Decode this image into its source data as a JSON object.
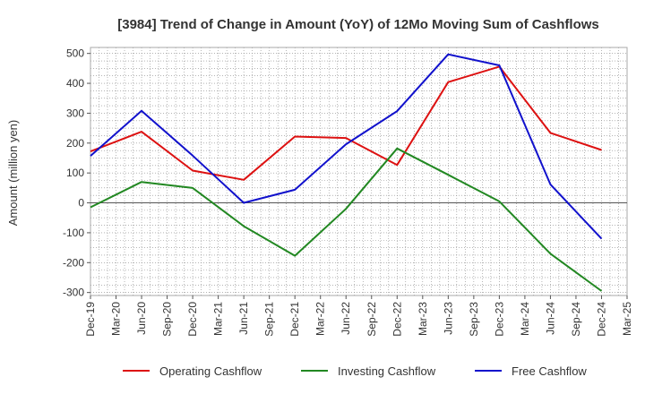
{
  "chart_data": {
    "type": "line",
    "title": "[3984]  Trend of Change in Amount (YoY) of 12Mo Moving Sum of Cashflows",
    "xlabel": "",
    "ylabel": "Amount (million yen)",
    "ylim": [
      -310,
      520
    ],
    "yticks": [
      500,
      400,
      300,
      200,
      100,
      0,
      -100,
      -200,
      -300
    ],
    "ytick_labels": [
      "500",
      "400",
      "300",
      "200",
      "100",
      "0",
      "-100",
      "-200",
      "-300"
    ],
    "x_ticks": [
      "Dec-19",
      "Mar-20",
      "Jun-20",
      "Sep-20",
      "Dec-20",
      "Mar-21",
      "Jun-21",
      "Sep-21",
      "Dec-21",
      "Mar-22",
      "Jun-22",
      "Sep-22",
      "Dec-22",
      "Mar-23",
      "Jun-23",
      "Sep-23",
      "Dec-23",
      "Mar-24",
      "Jun-24",
      "Sep-24",
      "Dec-24",
      "Mar-25"
    ],
    "grid": true,
    "legend_position": "bottom",
    "series": [
      {
        "name": "Operating Cashflow",
        "color": "#dd1111",
        "points": [
          [
            "Dec-19",
            172
          ],
          [
            "Jun-20",
            238
          ],
          [
            "Dec-20",
            108
          ],
          [
            "Jun-21",
            77
          ],
          [
            "Dec-21",
            222
          ],
          [
            "Jun-22",
            217
          ],
          [
            "Dec-22",
            127
          ],
          [
            "Jun-23",
            404
          ],
          [
            "Dec-23",
            456
          ],
          [
            "Jun-24",
            234
          ],
          [
            "Dec-24",
            177
          ]
        ]
      },
      {
        "name": "Investing Cashflow",
        "color": "#228822",
        "points": [
          [
            "Dec-19",
            -15
          ],
          [
            "Jun-20",
            70
          ],
          [
            "Dec-20",
            50
          ],
          [
            "Jun-21",
            -78
          ],
          [
            "Dec-21",
            -177
          ],
          [
            "Jun-22",
            -20
          ],
          [
            "Dec-22",
            182
          ],
          [
            "Jun-23",
            94
          ],
          [
            "Dec-23",
            5
          ],
          [
            "Jun-24",
            -170
          ],
          [
            "Dec-24",
            -295
          ]
        ]
      },
      {
        "name": "Free Cashflow",
        "color": "#1111cc",
        "points": [
          [
            "Dec-19",
            157
          ],
          [
            "Jun-20",
            308
          ],
          [
            "Dec-20",
            158
          ],
          [
            "Jun-21",
            0
          ],
          [
            "Dec-21",
            44
          ],
          [
            "Jun-22",
            196
          ],
          [
            "Dec-22",
            307
          ],
          [
            "Jun-23",
            497
          ],
          [
            "Dec-23",
            460
          ],
          [
            "Jun-24",
            62
          ],
          [
            "Dec-24",
            -120
          ]
        ]
      }
    ]
  }
}
